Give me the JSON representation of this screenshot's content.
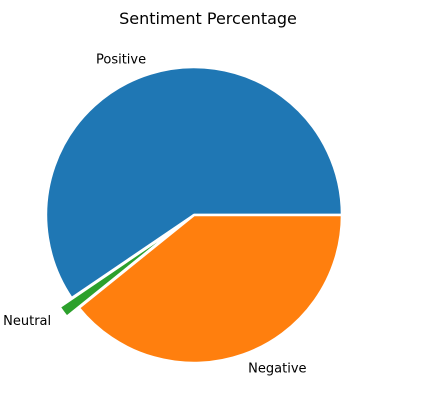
{
  "chart_data": {
    "type": "pie",
    "title": "Sentiment Percentage",
    "slices": [
      {
        "label": "Positive",
        "value": 59.5,
        "color": "#1f77b4",
        "explode": false
      },
      {
        "label": "Neutral",
        "value": 1.3,
        "color": "#2ca02c",
        "explode": true
      },
      {
        "label": "Negative",
        "value": 39.2,
        "color": "#ff7f0e",
        "explode": false
      }
    ],
    "start_angle_deg": 0,
    "direction": "counterclockwise",
    "legend": "none"
  }
}
